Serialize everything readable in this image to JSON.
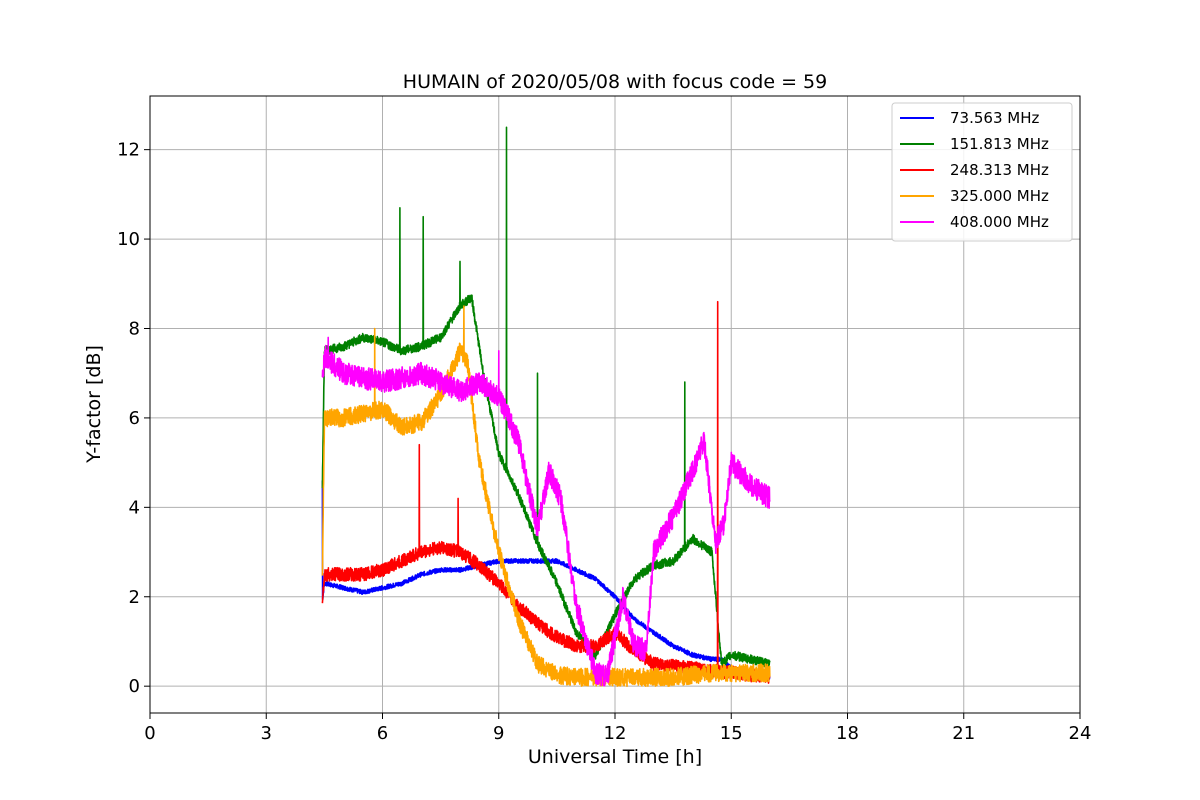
{
  "chart_data": {
    "type": "line",
    "title": "HUMAIN of 2020/05/08 with focus code = 59",
    "xlabel": "Universal Time [h]",
    "ylabel": "Y-factor [dB]",
    "xlim": [
      0,
      24
    ],
    "ylim": [
      -0.6,
      13.2
    ],
    "xticks": [
      0,
      3,
      6,
      9,
      12,
      15,
      18,
      21,
      24
    ],
    "yticks": [
      0,
      2,
      4,
      6,
      8,
      10,
      12
    ],
    "grid": true,
    "legend_position": "top-right",
    "series": [
      {
        "name": "73.563 MHz",
        "color": "#0000ff",
        "x": [
          4.45,
          4.5,
          5.0,
          5.5,
          6.0,
          6.5,
          7.0,
          7.5,
          8.0,
          8.5,
          9.0,
          9.5,
          10.0,
          10.5,
          11.0,
          11.5,
          12.0,
          12.5,
          13.0,
          13.5,
          14.0,
          14.5,
          14.75,
          15.0,
          15.5,
          16.0
        ],
        "y": [
          1.9,
          2.3,
          2.2,
          2.1,
          2.2,
          2.3,
          2.5,
          2.6,
          2.6,
          2.7,
          2.8,
          2.8,
          2.8,
          2.8,
          2.6,
          2.4,
          2.0,
          1.5,
          1.2,
          0.9,
          0.7,
          0.6,
          0.6,
          0.4,
          0.3,
          0.2
        ],
        "spikes": [
          [
            4.45,
            4.6
          ]
        ]
      },
      {
        "name": "151.813 MHz",
        "color": "#008000",
        "x": [
          4.45,
          4.5,
          5.0,
          5.5,
          6.0,
          6.5,
          7.0,
          7.5,
          8.0,
          8.3,
          8.6,
          9.0,
          9.5,
          10.0,
          10.5,
          11.0,
          11.5,
          12.0,
          12.5,
          13.0,
          13.5,
          14.0,
          14.5,
          14.75,
          15.0,
          15.5,
          16.0
        ],
        "y": [
          4.5,
          7.5,
          7.6,
          7.8,
          7.7,
          7.5,
          7.6,
          7.8,
          8.5,
          8.7,
          7.0,
          5.2,
          4.3,
          3.2,
          2.3,
          1.2,
          0.7,
          1.6,
          2.4,
          2.7,
          2.8,
          3.3,
          3.0,
          0.5,
          0.7,
          0.6,
          0.5
        ],
        "spikes": [
          [
            6.45,
            10.7
          ],
          [
            7.05,
            10.5
          ],
          [
            8.0,
            9.5
          ],
          [
            9.2,
            12.5
          ],
          [
            10.0,
            7.0
          ],
          [
            13.8,
            6.8
          ]
        ]
      },
      {
        "name": "248.313 MHz",
        "color": "#ff0000",
        "x": [
          4.45,
          4.5,
          5.0,
          5.5,
          6.0,
          6.5,
          7.0,
          7.5,
          8.0,
          8.5,
          9.0,
          9.5,
          10.0,
          10.5,
          11.0,
          11.5,
          12.0,
          12.5,
          13.0,
          13.5,
          14.0,
          14.5,
          15.0,
          15.5,
          16.0
        ],
        "y": [
          1.9,
          2.5,
          2.5,
          2.5,
          2.6,
          2.8,
          3.0,
          3.1,
          3.0,
          2.7,
          2.3,
          1.8,
          1.4,
          1.1,
          0.9,
          0.9,
          1.2,
          0.8,
          0.5,
          0.45,
          0.4,
          0.35,
          0.3,
          0.25,
          0.2
        ],
        "spikes": [
          [
            6.95,
            5.4
          ],
          [
            7.95,
            4.2
          ],
          [
            14.65,
            8.6
          ]
        ]
      },
      {
        "name": "325.000 MHz",
        "color": "#ffa500",
        "x": [
          4.45,
          4.5,
          5.0,
          5.5,
          6.0,
          6.5,
          7.0,
          7.5,
          8.0,
          8.2,
          8.5,
          9.0,
          9.5,
          10.0,
          10.5,
          11.0,
          11.5,
          12.0,
          12.5,
          13.0,
          13.5,
          14.0,
          14.5,
          15.0,
          15.5,
          16.0
        ],
        "y": [
          2.5,
          6.0,
          6.0,
          6.1,
          6.2,
          5.8,
          5.9,
          6.5,
          7.5,
          7.2,
          5.0,
          3.0,
          1.5,
          0.5,
          0.25,
          0.2,
          0.2,
          0.2,
          0.2,
          0.2,
          0.2,
          0.25,
          0.3,
          0.3,
          0.3,
          0.3
        ],
        "spikes": [
          [
            5.8,
            8.0
          ],
          [
            8.1,
            8.5
          ]
        ]
      },
      {
        "name": "408.000 MHz",
        "color": "#ff00ff",
        "x": [
          4.45,
          4.5,
          5.0,
          5.5,
          6.0,
          6.5,
          7.0,
          7.5,
          8.0,
          8.5,
          9.0,
          9.5,
          10.0,
          10.3,
          10.6,
          11.0,
          11.5,
          11.8,
          12.2,
          12.5,
          12.8,
          13.0,
          13.5,
          14.0,
          14.3,
          14.6,
          14.8,
          15.0,
          15.5,
          16.0
        ],
        "y": [
          6.8,
          7.4,
          7.0,
          6.9,
          6.8,
          6.9,
          7.0,
          6.8,
          6.6,
          6.8,
          6.5,
          5.5,
          3.5,
          4.8,
          4.2,
          1.8,
          0.3,
          0.2,
          2.0,
          0.9,
          0.8,
          3.0,
          3.8,
          4.8,
          5.5,
          3.2,
          3.6,
          5.0,
          4.5,
          4.2
        ],
        "spikes": [
          [
            4.6,
            7.8
          ],
          [
            9.0,
            7.5
          ]
        ]
      }
    ]
  }
}
